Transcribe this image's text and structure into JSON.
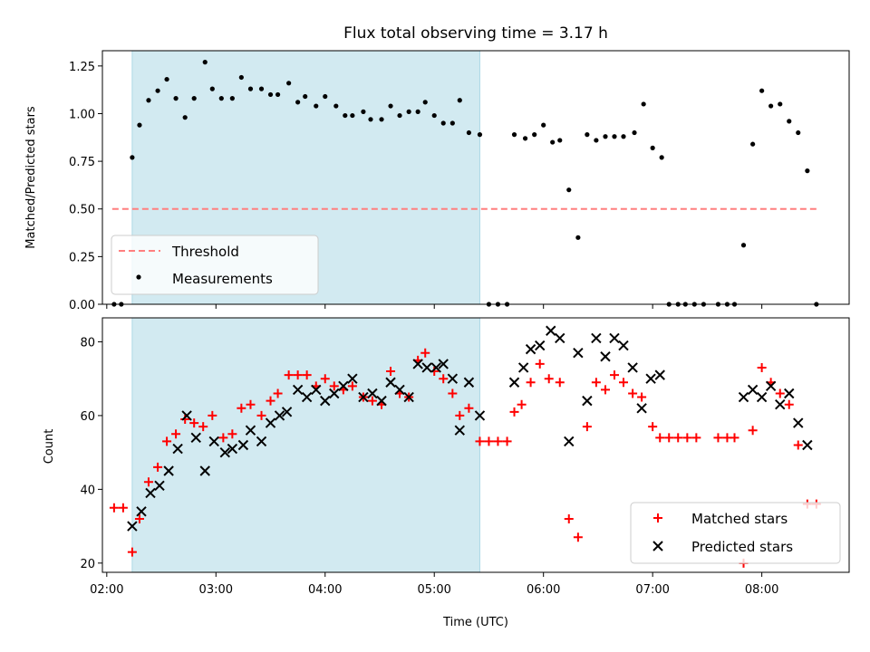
{
  "title": "Flux total observing time = 3.17 h",
  "colors": {
    "threshold": "#ff7f7f",
    "measurement": "#000000",
    "matched": "#ff0000",
    "predicted": "#000000",
    "shade": "#add8e6"
  },
  "chart_data": [
    {
      "type": "scatter",
      "panel": "top",
      "xlabel": "",
      "ylabel": "Matched/Predicted stars",
      "xlim": [
        1.96,
        8.8
      ],
      "ylim": [
        0.0,
        1.33
      ],
      "yticks": [
        "0.00",
        "0.25",
        "0.50",
        "0.75",
        "1.00",
        "1.25"
      ],
      "ytick_values": [
        0.0,
        0.25,
        0.5,
        0.75,
        1.0,
        1.25
      ],
      "shaded_span": [
        2.233,
        5.417
      ],
      "threshold": {
        "name": "Threshold",
        "value": 0.5,
        "x_range": [
          2.05,
          8.5
        ]
      },
      "legend_position": "lower left",
      "series": [
        {
          "name": "Measurements",
          "points": [
            [
              2.067,
              0
            ],
            [
              2.133,
              0
            ],
            [
              2.233,
              0.77
            ],
            [
              2.3,
              0.94
            ],
            [
              2.383,
              1.07
            ],
            [
              2.467,
              1.12
            ],
            [
              2.55,
              1.18
            ],
            [
              2.633,
              1.08
            ],
            [
              2.717,
              0.98
            ],
            [
              2.8,
              1.08
            ],
            [
              2.9,
              1.27
            ],
            [
              2.967,
              1.13
            ],
            [
              3.05,
              1.08
            ],
            [
              3.15,
              1.08
            ],
            [
              3.233,
              1.19
            ],
            [
              3.317,
              1.13
            ],
            [
              3.417,
              1.13
            ],
            [
              3.5,
              1.1
            ],
            [
              3.567,
              1.1
            ],
            [
              3.667,
              1.16
            ],
            [
              3.75,
              1.06
            ],
            [
              3.817,
              1.09
            ],
            [
              3.917,
              1.04
            ],
            [
              4.0,
              1.09
            ],
            [
              4.1,
              1.04
            ],
            [
              4.183,
              0.99
            ],
            [
              4.25,
              0.99
            ],
            [
              4.35,
              1.01
            ],
            [
              4.417,
              0.97
            ],
            [
              4.517,
              0.97
            ],
            [
              4.6,
              1.04
            ],
            [
              4.683,
              0.99
            ],
            [
              4.767,
              1.01
            ],
            [
              4.85,
              1.01
            ],
            [
              4.917,
              1.06
            ],
            [
              5.0,
              0.99
            ],
            [
              5.083,
              0.95
            ],
            [
              5.167,
              0.95
            ],
            [
              5.233,
              1.07
            ],
            [
              5.317,
              0.9
            ],
            [
              5.417,
              0.89
            ],
            [
              5.5,
              0
            ],
            [
              5.583,
              0
            ],
            [
              5.667,
              0
            ],
            [
              5.733,
              0.89
            ],
            [
              5.833,
              0.87
            ],
            [
              5.917,
              0.89
            ],
            [
              6.0,
              0.94
            ],
            [
              6.083,
              0.85
            ],
            [
              6.15,
              0.86
            ],
            [
              6.233,
              0.6
            ],
            [
              6.317,
              0.35
            ],
            [
              6.4,
              0.89
            ],
            [
              6.483,
              0.86
            ],
            [
              6.567,
              0.88
            ],
            [
              6.65,
              0.88
            ],
            [
              6.733,
              0.88
            ],
            [
              6.833,
              0.9
            ],
            [
              6.917,
              1.05
            ],
            [
              7.0,
              0.82
            ],
            [
              7.083,
              0.77
            ],
            [
              7.15,
              0
            ],
            [
              7.233,
              0
            ],
            [
              7.3,
              0
            ],
            [
              7.383,
              0
            ],
            [
              7.467,
              0
            ],
            [
              7.6,
              0
            ],
            [
              7.683,
              0
            ],
            [
              7.75,
              0
            ],
            [
              7.833,
              0.31
            ],
            [
              7.917,
              0.84
            ],
            [
              8.0,
              1.12
            ],
            [
              8.083,
              1.04
            ],
            [
              8.167,
              1.05
            ],
            [
              8.25,
              0.96
            ],
            [
              8.333,
              0.9
            ],
            [
              8.417,
              0.7
            ],
            [
              8.5,
              0
            ]
          ]
        }
      ]
    },
    {
      "type": "scatter",
      "panel": "bottom",
      "xlabel": "Time (UTC)",
      "ylabel": "Count",
      "xlim": [
        1.96,
        8.8
      ],
      "ylim": [
        17.5,
        86.5
      ],
      "yticks": [
        "20",
        "40",
        "60",
        "80"
      ],
      "ytick_values": [
        20,
        40,
        60,
        80
      ],
      "xticks": [
        "02:00",
        "03:00",
        "04:00",
        "05:00",
        "06:00",
        "07:00",
        "08:00"
      ],
      "xtick_values": [
        2,
        3,
        4,
        5,
        6,
        7,
        8
      ],
      "shaded_span": [
        2.233,
        5.417
      ],
      "legend_position": "lower right",
      "series": [
        {
          "name": "Matched stars",
          "marker": "plus",
          "points": [
            [
              2.067,
              35
            ],
            [
              2.15,
              35
            ],
            [
              2.233,
              23
            ],
            [
              2.3,
              32
            ],
            [
              2.383,
              42
            ],
            [
              2.467,
              46
            ],
            [
              2.55,
              53
            ],
            [
              2.633,
              55
            ],
            [
              2.717,
              59
            ],
            [
              2.8,
              58
            ],
            [
              2.883,
              57
            ],
            [
              2.967,
              60
            ],
            [
              3.067,
              54
            ],
            [
              3.15,
              55
            ],
            [
              3.233,
              62
            ],
            [
              3.317,
              63
            ],
            [
              3.417,
              60
            ],
            [
              3.5,
              64
            ],
            [
              3.567,
              66
            ],
            [
              3.667,
              71
            ],
            [
              3.75,
              71
            ],
            [
              3.833,
              71
            ],
            [
              3.917,
              68
            ],
            [
              4.0,
              70
            ],
            [
              4.083,
              68
            ],
            [
              4.167,
              67
            ],
            [
              4.25,
              68
            ],
            [
              4.35,
              65
            ],
            [
              4.433,
              64
            ],
            [
              4.517,
              63
            ],
            [
              4.6,
              72
            ],
            [
              4.683,
              66
            ],
            [
              4.767,
              65
            ],
            [
              4.85,
              75
            ],
            [
              4.917,
              77
            ],
            [
              5.0,
              72
            ],
            [
              5.083,
              70
            ],
            [
              5.167,
              66
            ],
            [
              5.233,
              60
            ],
            [
              5.317,
              62
            ],
            [
              5.417,
              53
            ],
            [
              5.5,
              53
            ],
            [
              5.583,
              53
            ],
            [
              5.667,
              53
            ],
            [
              5.733,
              61
            ],
            [
              5.8,
              63
            ],
            [
              5.883,
              69
            ],
            [
              5.967,
              74
            ],
            [
              6.05,
              70
            ],
            [
              6.15,
              69
            ],
            [
              6.233,
              32
            ],
            [
              6.317,
              27
            ],
            [
              6.4,
              57
            ],
            [
              6.483,
              69
            ],
            [
              6.567,
              67
            ],
            [
              6.65,
              71
            ],
            [
              6.733,
              69
            ],
            [
              6.817,
              66
            ],
            [
              6.9,
              65
            ],
            [
              7.0,
              57
            ],
            [
              7.067,
              54
            ],
            [
              7.15,
              54
            ],
            [
              7.233,
              54
            ],
            [
              7.317,
              54
            ],
            [
              7.4,
              54
            ],
            [
              7.6,
              54
            ],
            [
              7.683,
              54
            ],
            [
              7.75,
              54
            ],
            [
              7.833,
              20
            ],
            [
              7.917,
              56
            ],
            [
              8.0,
              73
            ],
            [
              8.083,
              69
            ],
            [
              8.167,
              66
            ],
            [
              8.25,
              63
            ],
            [
              8.333,
              52
            ],
            [
              8.417,
              36
            ],
            [
              8.5,
              36
            ]
          ]
        },
        {
          "name": "Predicted stars",
          "marker": "cross",
          "points": [
            [
              2.233,
              30
            ],
            [
              2.317,
              34
            ],
            [
              2.4,
              39
            ],
            [
              2.483,
              41
            ],
            [
              2.567,
              45
            ],
            [
              2.65,
              51
            ],
            [
              2.733,
              60
            ],
            [
              2.817,
              54
            ],
            [
              2.9,
              45
            ],
            [
              2.983,
              53
            ],
            [
              3.083,
              50
            ],
            [
              3.15,
              51
            ],
            [
              3.25,
              52
            ],
            [
              3.317,
              56
            ],
            [
              3.417,
              53
            ],
            [
              3.5,
              58
            ],
            [
              3.583,
              60
            ],
            [
              3.65,
              61
            ],
            [
              3.75,
              67
            ],
            [
              3.833,
              65
            ],
            [
              3.917,
              67
            ],
            [
              4.0,
              64
            ],
            [
              4.083,
              66
            ],
            [
              4.167,
              68
            ],
            [
              4.25,
              70
            ],
            [
              4.35,
              65
            ],
            [
              4.433,
              66
            ],
            [
              4.517,
              64
            ],
            [
              4.6,
              69
            ],
            [
              4.683,
              67
            ],
            [
              4.767,
              65
            ],
            [
              4.85,
              74
            ],
            [
              4.933,
              73
            ],
            [
              5.017,
              73
            ],
            [
              5.083,
              74
            ],
            [
              5.167,
              70
            ],
            [
              5.233,
              56
            ],
            [
              5.317,
              69
            ],
            [
              5.417,
              60
            ],
            [
              5.733,
              69
            ],
            [
              5.817,
              73
            ],
            [
              5.883,
              78
            ],
            [
              5.967,
              79
            ],
            [
              6.067,
              83
            ],
            [
              6.15,
              81
            ],
            [
              6.233,
              53
            ],
            [
              6.317,
              77
            ],
            [
              6.4,
              64
            ],
            [
              6.483,
              81
            ],
            [
              6.567,
              76
            ],
            [
              6.65,
              81
            ],
            [
              6.733,
              79
            ],
            [
              6.817,
              73
            ],
            [
              6.9,
              62
            ],
            [
              6.983,
              70
            ],
            [
              7.067,
              71
            ],
            [
              7.833,
              65
            ],
            [
              7.917,
              67
            ],
            [
              8.0,
              65
            ],
            [
              8.083,
              68
            ],
            [
              8.167,
              63
            ],
            [
              8.25,
              66
            ],
            [
              8.333,
              58
            ],
            [
              8.417,
              52
            ]
          ]
        }
      ]
    }
  ]
}
